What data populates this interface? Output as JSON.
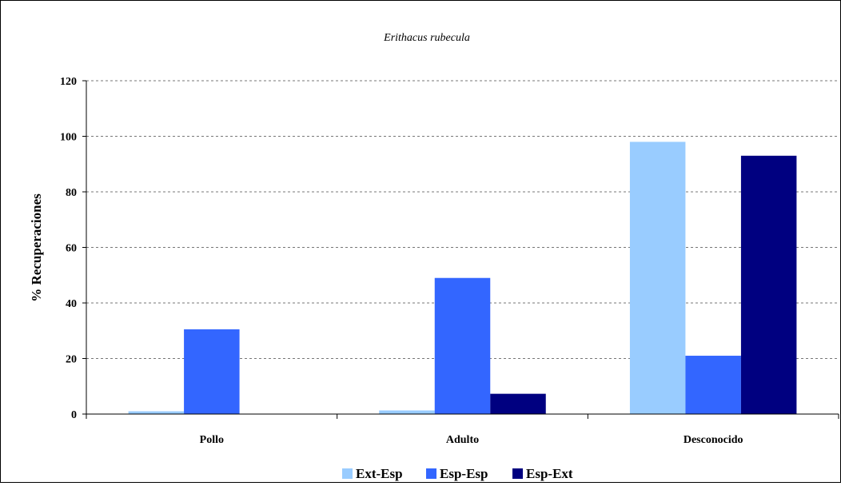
{
  "chart_data": {
    "type": "bar",
    "title": "Erithacus rubecula",
    "xlabel": "",
    "ylabel": "% Recuperaciones",
    "ylim": [
      0,
      120
    ],
    "yticks": [
      0,
      20,
      40,
      60,
      80,
      100,
      120
    ],
    "grid": true,
    "legend_position": "bottom",
    "categories": [
      "Pollo",
      "Adulto",
      "Desconocido"
    ],
    "series": [
      {
        "name": "Ext-Esp",
        "color": "#99ccff",
        "values": [
          1,
          1.3,
          98
        ]
      },
      {
        "name": "Esp-Esp",
        "color": "#3366ff",
        "values": [
          30.5,
          49,
          21
        ]
      },
      {
        "name": "Esp-Ext",
        "color": "#000080",
        "values": [
          0,
          7.3,
          93
        ]
      }
    ]
  }
}
